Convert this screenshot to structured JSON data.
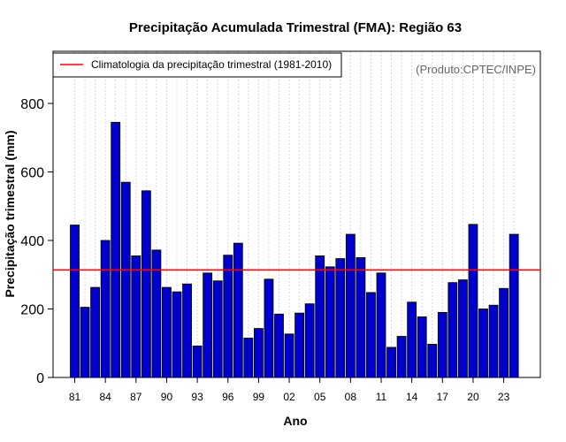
{
  "chart_data": {
    "type": "bar",
    "title": "Precipitação Acumulada Trimestral (FMA): Região 63",
    "xlabel": "Ano",
    "ylabel": "Precipitação trimestral (mm)",
    "ylim": [
      0,
      940
    ],
    "yticks": [
      0,
      200,
      400,
      600,
      800
    ],
    "xtick_labels": [
      "81",
      "84",
      "87",
      "90",
      "93",
      "96",
      "99",
      "02",
      "05",
      "08",
      "11",
      "14",
      "17",
      "20",
      "23"
    ],
    "xtick_years": [
      1981,
      1984,
      1987,
      1990,
      1993,
      1996,
      1999,
      2002,
      2005,
      2008,
      2011,
      2014,
      2017,
      2020,
      2023
    ],
    "categories": [
      1981,
      1982,
      1983,
      1984,
      1985,
      1986,
      1987,
      1988,
      1989,
      1990,
      1991,
      1992,
      1993,
      1994,
      1995,
      1996,
      1997,
      1998,
      1999,
      2000,
      2001,
      2002,
      2003,
      2004,
      2005,
      2006,
      2007,
      2008,
      2009,
      2010,
      2011,
      2012,
      2013,
      2014,
      2015,
      2016,
      2017,
      2018,
      2019,
      2020,
      2021,
      2022,
      2023,
      2024
    ],
    "values": [
      445,
      205,
      263,
      400,
      745,
      570,
      355,
      545,
      372,
      263,
      250,
      273,
      92,
      305,
      282,
      357,
      392,
      115,
      143,
      287,
      185,
      127,
      188,
      215,
      355,
      323,
      347,
      418,
      350,
      248,
      305,
      88,
      120,
      220,
      177,
      97,
      190,
      277,
      285,
      447,
      200,
      211,
      260,
      418
    ],
    "bar_color": "#0000cc",
    "reference_line": {
      "label": "Climatologia da precipitação trimestral (1981-2010)",
      "value": 314,
      "color": "#ff0000"
    },
    "legend_position": "top-left",
    "grid": "vertical-dotted",
    "credit": "(Produto:CPTEC/INPE)"
  }
}
